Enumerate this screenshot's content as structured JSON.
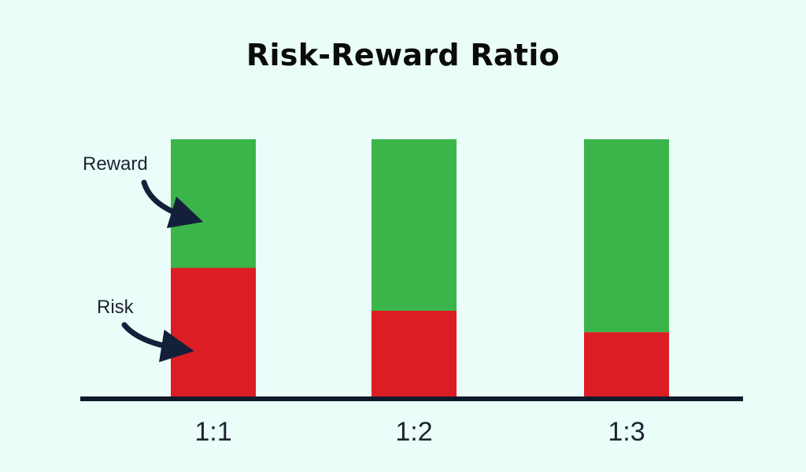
{
  "chart_data": {
    "type": "bar",
    "stacked": true,
    "title": "Risk-Reward Ratio",
    "categories": [
      "1:1",
      "1:2",
      "1:3"
    ],
    "series": [
      {
        "name": "Risk",
        "color": "#dc1d24",
        "values": [
          1,
          1,
          1
        ]
      },
      {
        "name": "Reward",
        "color": "#3bb54a",
        "values": [
          1,
          2,
          3
        ]
      }
    ],
    "annotations": [
      {
        "text": "Reward",
        "points_to": "Reward"
      },
      {
        "text": "Risk",
        "points_to": "Risk"
      }
    ],
    "grid": false,
    "axis_color": "#0f1a2a"
  }
}
